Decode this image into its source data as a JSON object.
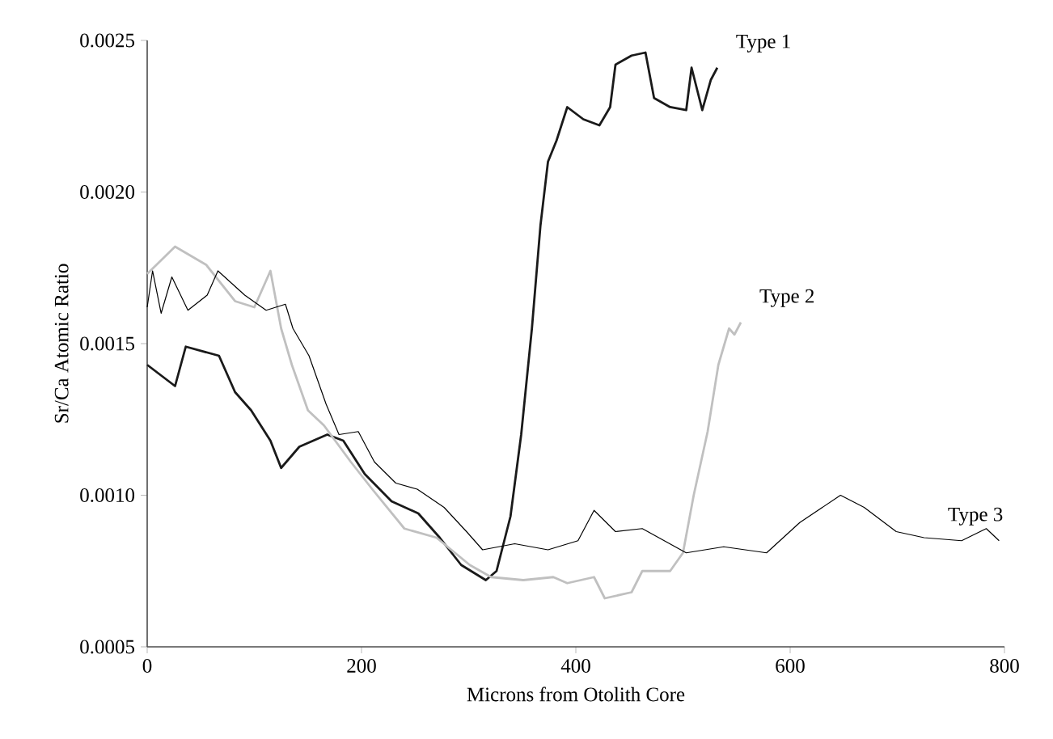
{
  "chart_data": {
    "type": "line",
    "xlabel": "Microns from Otolith Core",
    "ylabel": "Sr/Ca Atomic Ratio",
    "xlim": [
      0,
      800
    ],
    "ylim": [
      0.0005,
      0.0025
    ],
    "xticks": [
      0,
      200,
      400,
      600,
      800
    ],
    "yticks": [
      {
        "value": 0.0005,
        "label": "0.0005"
      },
      {
        "value": 0.001,
        "label": "0.0010"
      },
      {
        "value": 0.0015,
        "label": "0.0015"
      },
      {
        "value": 0.002,
        "label": "0.0020"
      },
      {
        "value": 0.0025,
        "label": "0.0025"
      }
    ],
    "grid": false,
    "legend": false,
    "marker": "none",
    "line_style": "solid",
    "series": [
      {
        "name": "Type 1",
        "color": "#1a1a1a",
        "x": [
          0,
          26,
          36,
          67,
          82,
          97,
          115,
          125,
          142,
          168,
          183,
          203,
          228,
          253,
          273,
          293,
          316,
          326,
          339,
          349,
          359,
          367,
          374,
          382,
          392,
          407,
          422,
          432,
          437,
          452,
          465,
          473,
          488,
          503,
          508,
          518,
          526,
          532
        ],
        "values": [
          0.00143,
          0.00136,
          0.00149,
          0.00146,
          0.00134,
          0.00128,
          0.00118,
          0.00109,
          0.00116,
          0.0012,
          0.00118,
          0.00107,
          0.00098,
          0.00094,
          0.00086,
          0.00077,
          0.00072,
          0.00075,
          0.00093,
          0.0012,
          0.00155,
          0.00189,
          0.0021,
          0.00217,
          0.00228,
          0.00224,
          0.00222,
          0.00228,
          0.00242,
          0.00245,
          0.00246,
          0.00231,
          0.00228,
          0.00227,
          0.00241,
          0.00227,
          0.00237,
          0.00241
        ]
      },
      {
        "name": "Type 2",
        "color": "#c0c0c0",
        "x": [
          0,
          26,
          55,
          82,
          100,
          115,
          125,
          135,
          150,
          165,
          190,
          210,
          240,
          270,
          301,
          321,
          351,
          379,
          392,
          417,
          427,
          452,
          462,
          488,
          500,
          510,
          523,
          533,
          543,
          548,
          554
        ],
        "values": [
          0.00173,
          0.00182,
          0.00176,
          0.00164,
          0.00162,
          0.00174,
          0.00155,
          0.00143,
          0.00128,
          0.00123,
          0.00111,
          0.00102,
          0.00089,
          0.00086,
          0.00077,
          0.00073,
          0.00072,
          0.00073,
          0.00071,
          0.00073,
          0.00066,
          0.00068,
          0.00075,
          0.00075,
          0.00081,
          0.001,
          0.00121,
          0.00143,
          0.00155,
          0.00153,
          0.00157
        ]
      },
      {
        "name": "Type 3",
        "color": "#000000",
        "x": [
          0,
          5,
          13,
          23,
          38,
          56,
          66,
          91,
          111,
          129,
          136,
          151,
          167,
          179,
          197,
          212,
          232,
          252,
          277,
          298,
          313,
          343,
          374,
          402,
          417,
          437,
          462,
          503,
          538,
          578,
          609,
          647,
          669,
          699,
          725,
          760,
          783,
          795
        ],
        "values": [
          0.00162,
          0.00174,
          0.0016,
          0.00172,
          0.00161,
          0.00166,
          0.00174,
          0.00166,
          0.00161,
          0.00163,
          0.00155,
          0.00146,
          0.0013,
          0.0012,
          0.00121,
          0.00111,
          0.00104,
          0.00102,
          0.00096,
          0.00088,
          0.00082,
          0.00084,
          0.00082,
          0.00085,
          0.00095,
          0.00088,
          0.00089,
          0.00081,
          0.00083,
          0.00081,
          0.00091,
          0.001,
          0.00096,
          0.00088,
          0.00086,
          0.00085,
          0.00089,
          0.00085
        ]
      }
    ]
  }
}
